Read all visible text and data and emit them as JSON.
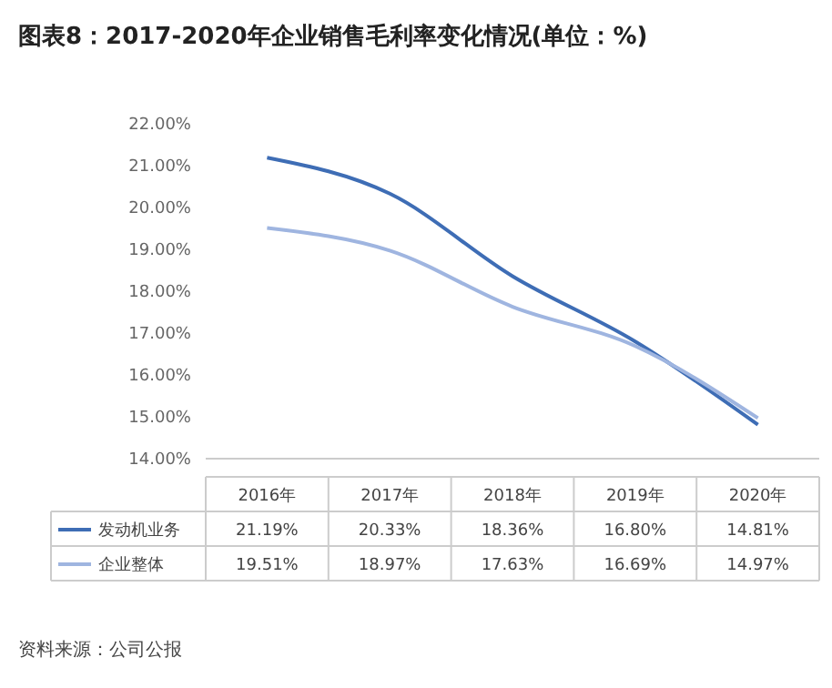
{
  "chart_data": {
    "type": "line",
    "title": "图表8：2017-2020年企业销售毛利率变化情况(单位：%)",
    "categories": [
      "2016年",
      "2017年",
      "2018年",
      "2019年",
      "2020年"
    ],
    "series": [
      {
        "name": "发动机业务",
        "color": "#3e6db5",
        "values": [
          21.19,
          20.33,
          18.36,
          16.8,
          14.81
        ],
        "value_labels": [
          "21.19%",
          "20.33%",
          "18.36%",
          "16.80%",
          "14.81%"
        ]
      },
      {
        "name": "企业整体",
        "color": "#9fb5e0",
        "values": [
          19.51,
          18.97,
          17.63,
          16.69,
          14.97
        ],
        "value_labels": [
          "19.51%",
          "18.97%",
          "17.63%",
          "16.69%",
          "14.97%"
        ]
      }
    ],
    "ylim": [
      14,
      22
    ],
    "yticks": [
      {
        "value": 14,
        "label": "14.00%"
      },
      {
        "value": 15,
        "label": "15.00%"
      },
      {
        "value": 16,
        "label": "16.00%"
      },
      {
        "value": 17,
        "label": "17.00%"
      },
      {
        "value": 18,
        "label": "18.00%"
      },
      {
        "value": 19,
        "label": "19.00%"
      },
      {
        "value": 20,
        "label": "20.00%"
      },
      {
        "value": 21,
        "label": "21.00%"
      },
      {
        "value": 22,
        "label": "22.00%"
      }
    ],
    "legend": "bottom",
    "line_style": "solid",
    "grid": false,
    "annotations": [
      "资料来源：公司公报"
    ]
  }
}
